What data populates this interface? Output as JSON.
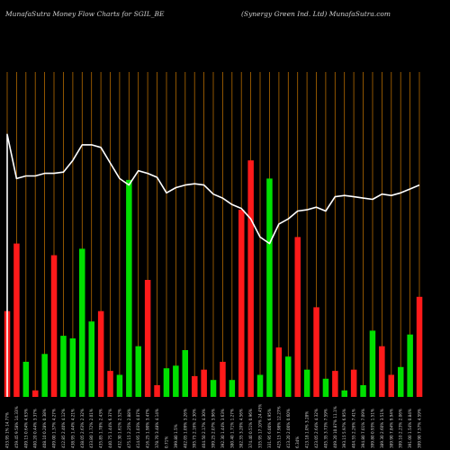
{
  "header": {
    "left_title": "MunafaSutra  Money Flow  Charts for SGIL_BE",
    "right_title": "(Synergy Green  Ind. Ltd) MunafaSutra.com"
  },
  "colors": {
    "background": "#000000",
    "up_bar": "#00e000",
    "down_bar": "#ff1a1a",
    "gridline": "#b36a00",
    "price_line": "#ffffff",
    "text": "#cfcfcf"
  },
  "chart_data": {
    "type": "bar",
    "title": "MunafaSutra  Money Flow  Charts for SGIL_BE",
    "subtitle": "(Synergy Green  Ind. Ltd) MunafaSutra.com",
    "ylim": [
      0,
      250
    ],
    "grid": true,
    "categories": [
      "453.95 1% 14.77%",
      "459.45 9.58% 14.33%",
      "409.15 0.64% 4.63%",
      "400.20 0.44% 3.37%",
      "408.10 0.28% 0.38%",
      "409.00 1.37% 4.27%",
      "412.85 2.40% 4.12%",
      "438.95 1.44% 4.21%",
      "438.05 2.63% 2.32%",
      "433.80 1.72% 2.01%",
      "435.85 1.78% 2.43%",
      "440.75 1.44% 6.37%",
      "432.30 1.61% 2.52%",
      "475.15 2.25% 2.88%",
      "414.95 1.03% 4.07%",
      "416.25 1.90% 3.47%",
      "378.70 3.48% 4.14%",
      "0.71%",
      "399.80 1.5%",
      "402.05 1.09% 3.26%",
      "395.75 2.16% 2.30%",
      "404.50 2.17% 4.30%",
      "399.25 2.07% 3.96%",
      "392.30 1.44% 3.63%",
      "380.40 1.71% 1.27%",
      "382.35 3.20% 4.56%",
      "374.40 0.51% 0.96%",
      "335.95 17.10% 24.45%",
      "331.95 6.00% 6.95%",
      "425.15 7.98% 12.27%",
      "413.20 2.00% 0.60%",
      "6.34%",
      "413.18 1.0% 3.28%",
      "423.05 2.64% 4.32%",
      "405.35 3.73% 7.59%",
      "409.20 10.87% 11.1%",
      "393.15 5.97% 6.95%",
      "404.55 2.26% 7.41%",
      "394.80 7.01% 7.09%",
      "399.80 0.93% 1.51%",
      "389.30 2.60% 3.51%",
      "389.90 7.84% 9.94%",
      "399.10 2.23% 2.06%",
      "391.00 1.54% 0.84%",
      "399.90 7.57% 4.59%"
    ],
    "series": [
      {
        "values": [
          66,
          118,
          27,
          5,
          33,
          109,
          47,
          45,
          114,
          58,
          66,
          20,
          17,
          167,
          39,
          90,
          9,
          22,
          24,
          36,
          16,
          21,
          13,
          27,
          13,
          144,
          182,
          17,
          168,
          38,
          31,
          123,
          21,
          69,
          14,
          20,
          5,
          21,
          9,
          51,
          39,
          17,
          23,
          48,
          77
        ],
        "direction": [
          "down",
          "down",
          "up",
          "down",
          "up",
          "down",
          "up",
          "up",
          "up",
          "up",
          "down",
          "down",
          "up",
          "up",
          "up",
          "down",
          "down",
          "up",
          "up",
          "up",
          "down",
          "down",
          "up",
          "down",
          "up",
          "down",
          "down",
          "up",
          "up",
          "down",
          "up",
          "down",
          "up",
          "down",
          "up",
          "down",
          "up",
          "down",
          "up",
          "up",
          "down",
          "down",
          "up",
          "up",
          "down"
        ]
      },
      {
        "values": [
          202,
          168,
          170,
          170,
          172,
          172,
          173,
          182,
          194,
          194,
          192,
          180,
          168,
          163,
          174,
          172,
          169,
          157,
          161,
          163,
          164,
          163,
          156,
          153,
          148,
          145,
          137,
          123,
          118,
          133,
          137,
          143,
          144,
          146,
          143,
          154,
          155,
          154,
          153,
          152,
          156,
          155,
          157,
          160,
          163
        ],
        "line": true
      }
    ]
  }
}
